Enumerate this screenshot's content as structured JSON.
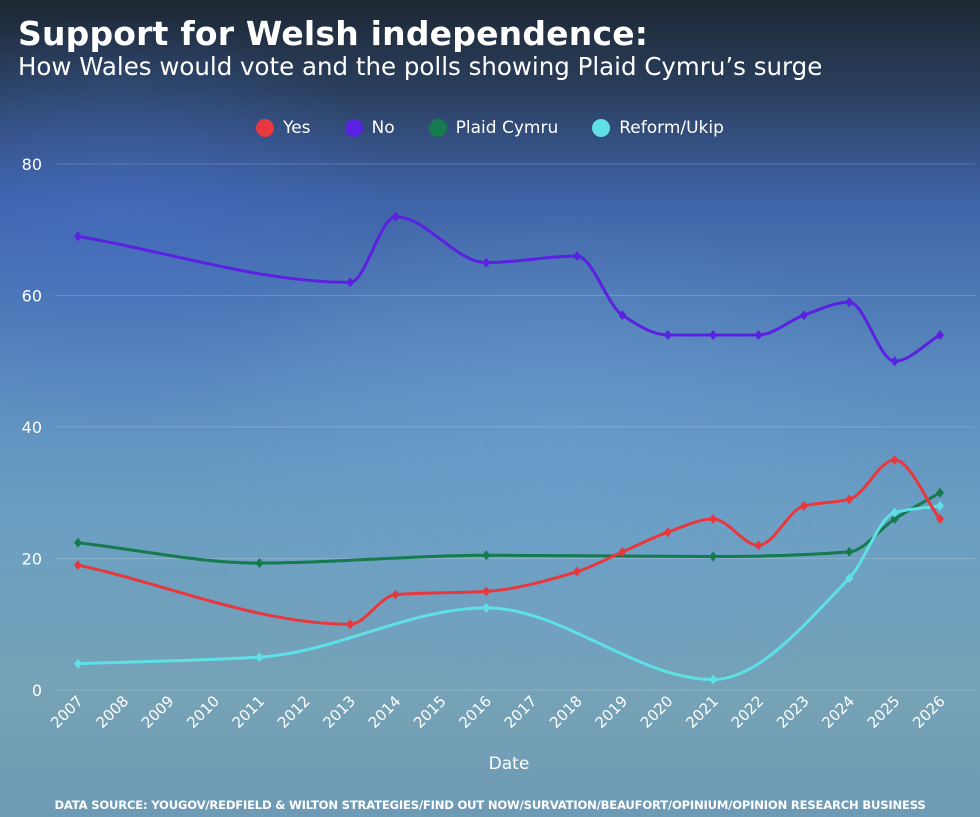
{
  "title": "Support for Welsh independence:",
  "subtitle": "How Wales would vote and the polls showing Plaid Cymru’s surge",
  "source": "DATA SOURCE: YOUGOV/REDFIELD & WILTON STRATEGIES/FIND OUT NOW/SURVATION/BEAUFORT/OPINIUM/OPINION RESEARCH BUSINESS",
  "chart_data": {
    "type": "line",
    "title": "Support for Welsh independence:",
    "subtitle": "How Wales would vote and the polls showing Plaid Cymru’s surge",
    "xlabel": "Date",
    "ylabel": "",
    "xlim": [
      2007,
      2026
    ],
    "ylim": [
      0,
      80
    ],
    "yticks": [
      "0",
      "20",
      "40",
      "60",
      "80"
    ],
    "xticks": [
      "2007",
      "2008",
      "2009",
      "2010",
      "2011",
      "2012",
      "2013",
      "2014",
      "2015",
      "2016",
      "2017",
      "2018",
      "2019",
      "2020",
      "2021",
      "2022",
      "2023",
      "2024",
      "2025",
      "2026"
    ],
    "grid": true,
    "legend_position": "top-center",
    "series": [
      {
        "name": "Yes",
        "color": "#e8383d",
        "x": [
          2007,
          2013,
          2014,
          2016,
          2018,
          2019,
          2020,
          2021,
          2022,
          2023,
          2024,
          2025,
          2026
        ],
        "values": [
          19,
          10,
          14.5,
          15,
          18,
          21,
          24,
          26,
          22,
          28,
          29,
          35,
          26
        ]
      },
      {
        "name": "No",
        "color": "#5a22e0",
        "x": [
          2007,
          2013,
          2014,
          2016,
          2018,
          2019,
          2020,
          2021,
          2022,
          2023,
          2024,
          2025,
          2026
        ],
        "values": [
          69,
          62,
          72,
          65,
          66,
          57,
          54,
          54,
          54,
          57,
          59,
          50,
          54
        ]
      },
      {
        "name": "Plaid Cymru",
        "color": "#157a4e",
        "x": [
          2007,
          2011,
          2016,
          2021,
          2024,
          2025,
          2026
        ],
        "values": [
          22.4,
          19.3,
          20.5,
          20.3,
          21,
          26,
          30
        ]
      },
      {
        "name": "Reform/Ukip",
        "color": "#5ee0e6",
        "x": [
          2007,
          2011,
          2016,
          2021,
          2024,
          2025,
          2026
        ],
        "values": [
          4,
          5,
          12.5,
          1.6,
          17,
          27,
          28
        ]
      }
    ]
  }
}
